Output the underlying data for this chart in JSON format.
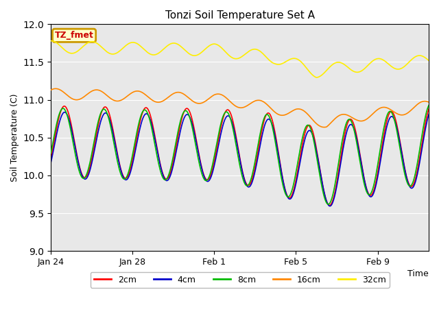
{
  "title": "Tonzi Soil Temperature Set A",
  "xlabel": "Time",
  "ylabel": "Soil Temperature (C)",
  "ylim": [
    9.0,
    12.0
  ],
  "yticks": [
    9.0,
    9.5,
    10.0,
    10.5,
    11.0,
    11.5,
    12.0
  ],
  "background_color": "#e8e8e8",
  "fig_background": "#ffffff",
  "legend_label": "TZ_fmet",
  "legend_bg": "#ffffcc",
  "legend_border": "#cc9900",
  "series_colors": {
    "2cm": "#ff0000",
    "4cm": "#0000cc",
    "8cm": "#00bb00",
    "16cm": "#ff8800",
    "32cm": "#ffee00"
  },
  "xtick_labels": [
    "Jan 24",
    "Jan 28",
    "Feb 1",
    "Feb 5",
    "Feb 9"
  ],
  "xtick_days_offset": [
    0,
    4,
    8,
    12,
    16
  ]
}
